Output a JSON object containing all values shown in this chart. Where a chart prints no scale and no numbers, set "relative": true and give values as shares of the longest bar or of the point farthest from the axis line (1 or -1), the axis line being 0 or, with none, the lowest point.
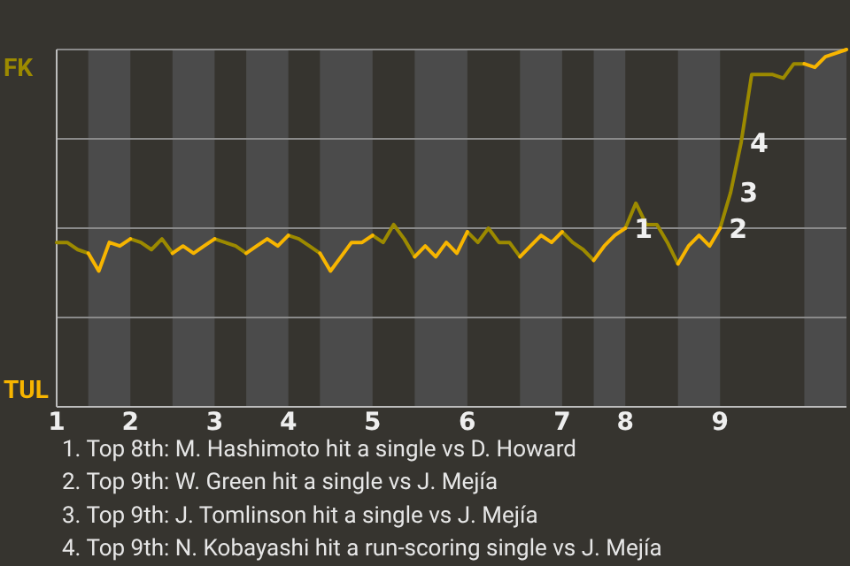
{
  "chart_data": {
    "type": "line",
    "relative": true,
    "categories": [
      "1",
      null,
      null,
      null,
      null,
      null,
      null,
      "2",
      null,
      null,
      null,
      null,
      null,
      null,
      null,
      "3",
      null,
      null,
      null,
      null,
      null,
      null,
      "4",
      null,
      null,
      null,
      null,
      null,
      null,
      null,
      "5",
      null,
      null,
      null,
      null,
      null,
      null,
      null,
      null,
      "6",
      null,
      null,
      null,
      null,
      null,
      null,
      null,
      null,
      "7",
      null,
      null,
      null,
      null,
      null,
      "8",
      null,
      null,
      null,
      null,
      null,
      null,
      null,
      null,
      "9",
      null,
      null,
      null,
      null,
      null,
      null,
      null,
      null,
      null,
      null,
      null,
      null
    ],
    "grid": "y",
    "marker": "none",
    "line_style": "solid",
    "series": [
      {
        "color": "#9c8a00",
        "values": [
          0.46,
          0.46,
          0.44,
          0.43,
          null,
          null,
          null,
          0.47,
          0.46,
          0.44,
          0.47,
          0.43,
          null,
          null,
          null,
          0.47,
          0.46,
          0.45,
          0.43,
          null,
          null,
          null,
          0.48,
          0.47,
          0.45,
          0.43,
          null,
          null,
          null,
          null,
          0.48,
          0.46,
          0.51,
          0.47,
          0.42,
          null,
          null,
          null,
          null,
          0.49,
          0.46,
          0.5,
          0.46,
          0.46,
          0.42,
          null,
          null,
          null,
          0.49,
          0.46,
          0.44,
          0.41,
          null,
          null,
          0.5,
          0.57,
          0.51,
          0.51,
          0.46,
          0.4,
          null,
          null,
          null,
          0.5,
          0.6,
          0.74,
          0.93,
          0.93,
          0.93,
          0.92,
          0.96,
          0.96,
          null,
          null,
          null,
          null
        ]
      },
      {
        "color": "#f7b500",
        "values": [
          null,
          null,
          null,
          0.43,
          0.38,
          0.46,
          0.45,
          0.47,
          null,
          null,
          null,
          0.43,
          0.45,
          0.43,
          0.45,
          0.47,
          null,
          null,
          0.43,
          0.45,
          0.47,
          0.45,
          0.48,
          null,
          null,
          0.43,
          0.38,
          0.42,
          0.46,
          0.46,
          0.48,
          null,
          null,
          null,
          0.42,
          0.45,
          0.42,
          0.46,
          0.43,
          0.49,
          null,
          null,
          null,
          null,
          0.42,
          0.45,
          0.48,
          0.46,
          0.49,
          null,
          null,
          0.41,
          0.45,
          0.48,
          0.5,
          null,
          null,
          null,
          null,
          0.4,
          0.45,
          0.48,
          0.45,
          0.5,
          null,
          null,
          null,
          null,
          null,
          null,
          null,
          0.96,
          0.95,
          0.98,
          0.99,
          1.0
        ]
      }
    ],
    "annotations": [
      "FK",
      "TUL",
      {
        "text": "1",
        "x": "8",
        "y": 0.5
      },
      {
        "text": "2",
        "x": "9",
        "y": 0.5
      },
      {
        "text": "3",
        "x": "9",
        "y": 0.6
      },
      "4",
      "1. Top 8th: M. Hashimoto hit a single vs D. Howard",
      "2. Top 9th: W. Green hit a single vs J. Mejía",
      "3. Top 9th: J. Tomlinson hit a single vs J. Mejía",
      "4. Top 9th: N. Kobayashi hit a run-scoring single vs J. Mejía"
    ]
  }
}
